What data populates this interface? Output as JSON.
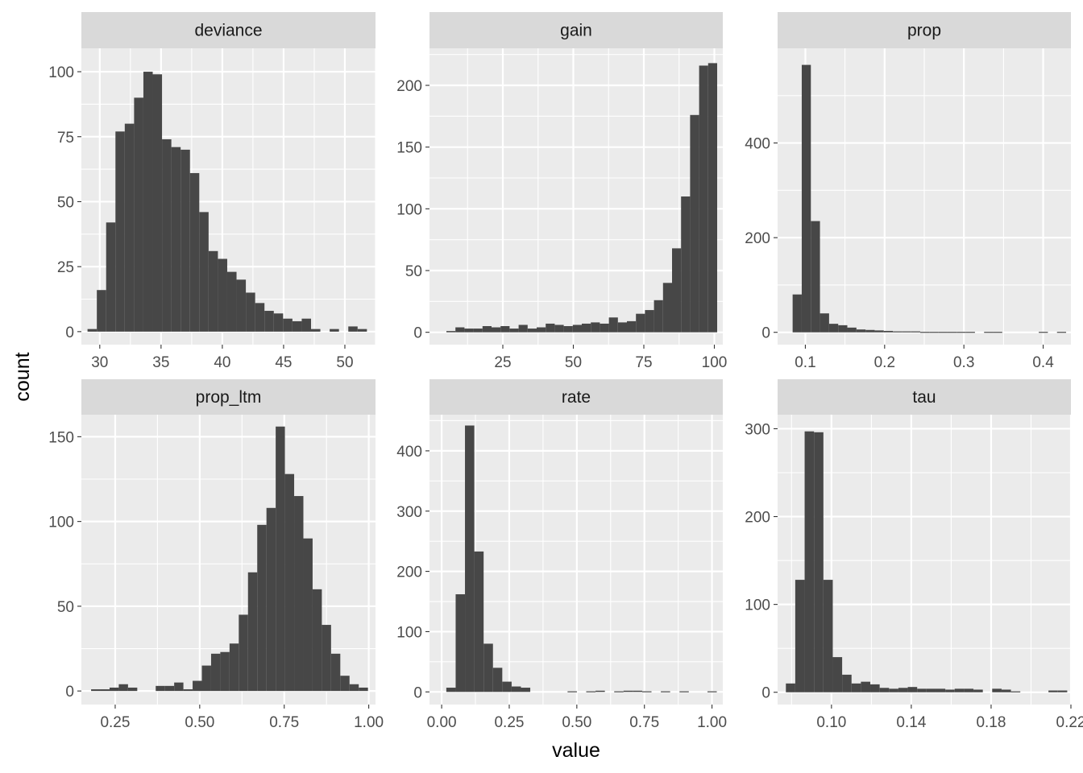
{
  "figure": {
    "xlabel": "value",
    "ylabel": "count"
  },
  "colors": {
    "panel_bg": "#ebebeb",
    "strip_bg": "#d9d9d9",
    "grid": "#ffffff",
    "bar": "#474747",
    "tick_text": "#4d4d4d"
  },
  "chart_data": [
    {
      "type": "bar",
      "facet": "deviance",
      "x_ticks": [
        30,
        35,
        40,
        45,
        50
      ],
      "y_ticks": [
        0,
        25,
        50,
        75,
        100
      ],
      "xlim": [
        28.5,
        52.5
      ],
      "ylim": [
        -5,
        109
      ],
      "grid": true,
      "bin_width": 0.76,
      "bin_centers": [
        29.38,
        30.14,
        30.9,
        31.66,
        32.42,
        33.18,
        33.94,
        34.7,
        35.46,
        36.22,
        36.98,
        37.74,
        38.5,
        39.26,
        40.02,
        40.78,
        41.54,
        42.3,
        43.06,
        43.82,
        44.58,
        45.34,
        46.1,
        46.86,
        47.62,
        48.38,
        49.14,
        49.9,
        50.66,
        51.42
      ],
      "counts": [
        1,
        16,
        42,
        77,
        80,
        90,
        100,
        99,
        74,
        71,
        70,
        61,
        46,
        31,
        28,
        23,
        20,
        15,
        11,
        8,
        7,
        5,
        4,
        5,
        1,
        0,
        1,
        0,
        2,
        1
      ]
    },
    {
      "type": "bar",
      "facet": "gain",
      "x_ticks": [
        25,
        50,
        75,
        100
      ],
      "y_ticks": [
        0,
        50,
        100,
        150,
        200
      ],
      "xlim": [
        -1,
        103
      ],
      "ylim": [
        -10,
        230
      ],
      "grid": true,
      "bin_width": 3.2,
      "bin_centers": [
        3.4,
        6.6,
        9.8,
        13.0,
        16.2,
        19.4,
        22.6,
        25.8,
        29.0,
        32.2,
        35.4,
        38.6,
        41.8,
        45.0,
        48.2,
        51.4,
        54.6,
        57.8,
        61.0,
        64.2,
        67.4,
        70.6,
        73.8,
        77.0,
        80.2,
        83.4,
        86.6,
        89.8,
        93.0,
        96.2,
        99.4
      ],
      "counts": [
        0,
        1,
        4,
        3,
        3,
        5,
        4,
        5,
        3,
        6,
        3,
        4,
        7,
        6,
        5,
        6,
        7,
        8,
        7,
        12,
        8,
        9,
        15,
        18,
        26,
        40,
        68,
        110,
        176,
        216,
        218
      ]
    },
    {
      "type": "bar",
      "facet": "prop",
      "x_ticks": [
        0.1,
        0.2,
        0.3,
        0.4
      ],
      "y_ticks": [
        0,
        200,
        400
      ],
      "xlim": [
        0.065,
        0.435
      ],
      "ylim": [
        -26,
        600
      ],
      "grid": true,
      "bin_width": 0.0115,
      "bin_centers": [
        0.0897,
        0.1012,
        0.1127,
        0.1242,
        0.1357,
        0.1472,
        0.1587,
        0.1702,
        0.1817,
        0.1932,
        0.2047,
        0.2162,
        0.2277,
        0.2392,
        0.2507,
        0.2622,
        0.2737,
        0.2852,
        0.2967,
        0.3082,
        0.3197,
        0.3312,
        0.3427,
        0.3542,
        0.3657,
        0.3772,
        0.3887,
        0.4002,
        0.4117,
        0.4232
      ],
      "counts": [
        80,
        565,
        235,
        40,
        18,
        15,
        10,
        6,
        5,
        4,
        3,
        2,
        2,
        2,
        1,
        1,
        1,
        1,
        1,
        1,
        0,
        1,
        1,
        0,
        0,
        0,
        0,
        1,
        0,
        1
      ]
    },
    {
      "type": "bar",
      "facet": "prop_ltm",
      "x_ticks": [
        0.25,
        0.5,
        0.75,
        1.0
      ],
      "x_tick_labels": [
        "0.25",
        "0.50",
        "0.75",
        "1.00"
      ],
      "y_ticks": [
        0,
        50,
        100,
        150
      ],
      "xlim": [
        0.15,
        1.02
      ],
      "ylim": [
        -8,
        163
      ],
      "grid": true,
      "bin_width": 0.0273,
      "bin_centers": [
        0.1924,
        0.2197,
        0.247,
        0.2743,
        0.3016,
        0.3289,
        0.3562,
        0.3835,
        0.4108,
        0.4381,
        0.4654,
        0.4927,
        0.52,
        0.5473,
        0.5746,
        0.6019,
        0.6292,
        0.6565,
        0.6838,
        0.7111,
        0.7384,
        0.7657,
        0.793,
        0.8203,
        0.8476,
        0.8749,
        0.9022,
        0.9295,
        0.9568,
        0.9841
      ],
      "counts": [
        1,
        1,
        2,
        4,
        2,
        0,
        0,
        3,
        3,
        5,
        1,
        6,
        15,
        22,
        23,
        28,
        45,
        70,
        98,
        108,
        156,
        128,
        115,
        90,
        60,
        39,
        22,
        9,
        4,
        2
      ]
    },
    {
      "type": "bar",
      "facet": "rate",
      "x_ticks": [
        0,
        0.25,
        0.5,
        0.75,
        1.0
      ],
      "x_tick_labels": [
        "0.00",
        "0.25",
        "0.50",
        "0.75",
        "1.00"
      ],
      "y_ticks": [
        0,
        100,
        200,
        300,
        400
      ],
      "xlim": [
        -0.045,
        1.04
      ],
      "ylim": [
        -21,
        460
      ],
      "grid": true,
      "bin_width": 0.0345,
      "bin_centers": [
        0.0345,
        0.069,
        0.1035,
        0.138,
        0.1725,
        0.207,
        0.2415,
        0.276,
        0.3105,
        0.345,
        0.3795,
        0.414,
        0.4485,
        0.483,
        0.5175,
        0.552,
        0.5865,
        0.621,
        0.6555,
        0.69,
        0.7245,
        0.759,
        0.7935,
        0.828,
        0.8625,
        0.897,
        0.9315,
        0.966,
        1.0005
      ],
      "counts": [
        7,
        162,
        442,
        233,
        80,
        40,
        17,
        9,
        7,
        0,
        0,
        0,
        0,
        1,
        0,
        1,
        2,
        0,
        1,
        2,
        2,
        1,
        0,
        1,
        0,
        1,
        0,
        0,
        1
      ]
    },
    {
      "type": "bar",
      "facet": "tau",
      "x_ticks": [
        0.1,
        0.14,
        0.18,
        0.22
      ],
      "x_tick_labels": [
        "0.10",
        "0.14",
        "0.18",
        "0.22"
      ],
      "y_ticks": [
        0,
        100,
        200,
        300
      ],
      "xlim": [
        0.073,
        0.22
      ],
      "ylim": [
        -14,
        316
      ],
      "grid": true,
      "bin_width": 0.0047,
      "bin_centers": [
        0.0795,
        0.0842,
        0.0889,
        0.0936,
        0.0983,
        0.103,
        0.1077,
        0.1124,
        0.1171,
        0.1218,
        0.1265,
        0.1312,
        0.1359,
        0.1406,
        0.1453,
        0.15,
        0.1547,
        0.1594,
        0.1641,
        0.1688,
        0.1735,
        0.1782,
        0.1829,
        0.1876,
        0.1923,
        0.197,
        0.2017,
        0.2064,
        0.2111,
        0.2158
      ],
      "counts": [
        10,
        128,
        297,
        296,
        128,
        40,
        20,
        10,
        12,
        9,
        5,
        4,
        5,
        6,
        4,
        4,
        4,
        3,
        4,
        4,
        3,
        0,
        4,
        3,
        1,
        0,
        0,
        0,
        2,
        2
      ]
    }
  ]
}
